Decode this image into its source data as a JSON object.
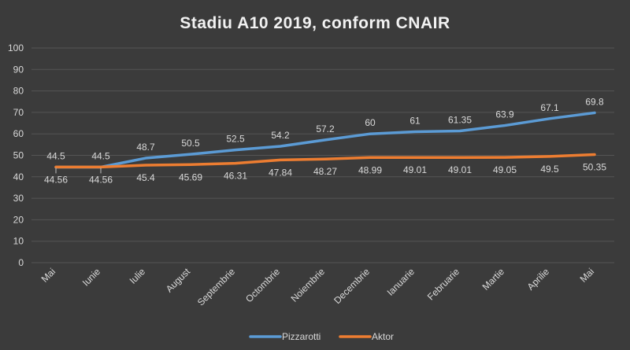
{
  "chart_data": {
    "type": "line",
    "title": "Stadiu A10 2019, conform CNAIR",
    "xlabel": "",
    "ylabel": "",
    "categories": [
      "Mai",
      "Iunie",
      "Iulie",
      "August",
      "Septembrie",
      "Octombrie",
      "Noiembrie",
      "Decembrie",
      "Ianuarie",
      "Februarie",
      "Martie",
      "Aprilie",
      "Mai"
    ],
    "ylim": [
      0,
      100
    ],
    "yticks": [
      0,
      10,
      20,
      30,
      40,
      50,
      60,
      70,
      80,
      90,
      100
    ],
    "grid": true,
    "legend_position": "bottom",
    "series": [
      {
        "name": "Pizzarotti",
        "color": "#5b9bd5",
        "values": [
          44.5,
          44.5,
          48.7,
          50.5,
          52.5,
          54.2,
          57.2,
          60,
          61,
          61.35,
          63.9,
          67.1,
          69.8
        ],
        "labels": [
          "44.5",
          "44.5",
          "48.7",
          "50.5",
          "52.5",
          "54.2",
          "57.2",
          "60",
          "61",
          "61.35",
          "63.9",
          "67.1",
          "69.8"
        ]
      },
      {
        "name": "Aktor",
        "color": "#ed7d31",
        "values": [
          44.56,
          44.56,
          45.4,
          45.69,
          46.31,
          47.84,
          48.27,
          48.99,
          49.01,
          49.01,
          49.05,
          49.5,
          50.35
        ],
        "labels": [
          "44.56",
          "44.56",
          "45.4",
          "45.69",
          "46.31",
          "47.84",
          "48.27",
          "48.99",
          "49.01",
          "49.01",
          "49.05",
          "49.5",
          "50.35"
        ]
      }
    ]
  }
}
